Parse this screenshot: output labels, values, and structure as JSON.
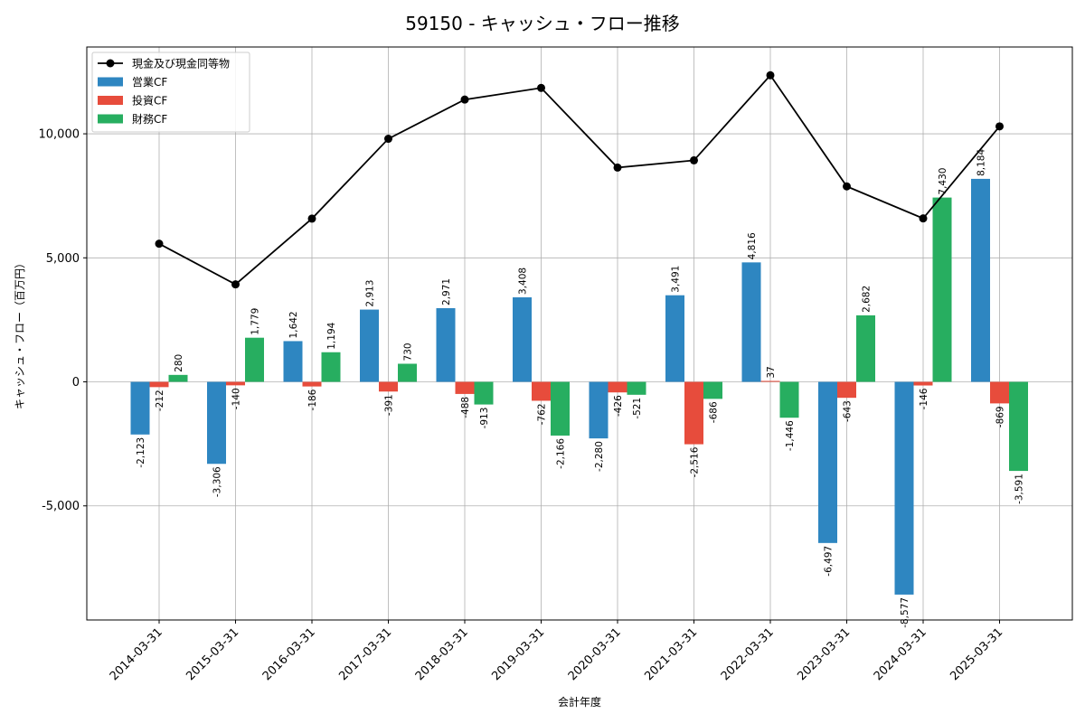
{
  "chart_data": {
    "type": "bar",
    "title": "59150 - キャッシュ・フロー推移",
    "xlabel": "会計年度",
    "ylabel": "キャッシュ・フロー（百万円）",
    "ylim": [
      -9600,
      13500
    ],
    "yticks": [
      -5000,
      0,
      5000,
      10000
    ],
    "ytick_labels": [
      "-5,000",
      "0",
      "5,000",
      "10,000"
    ],
    "grid": true,
    "legend_position": "top-left",
    "categories": [
      "2014-03-31",
      "2015-03-31",
      "2016-03-31",
      "2017-03-31",
      "2018-03-31",
      "2019-03-31",
      "2020-03-31",
      "2021-03-31",
      "2022-03-31",
      "2023-03-31",
      "2024-03-31",
      "2025-03-31"
    ],
    "series": [
      {
        "name": "営業CF",
        "kind": "bar",
        "color": "#2E86C1",
        "values": [
          -2123,
          -3306,
          1642,
          2913,
          2971,
          3408,
          -2280,
          3491,
          4816,
          -6497,
          -8577,
          8184
        ],
        "labels": [
          "-2,123",
          "-3,306",
          "1,642",
          "2,913",
          "2,971",
          "3,408",
          "-2,280",
          "3,491",
          "4,816",
          "-6,497",
          "-8,577",
          "8,184"
        ]
      },
      {
        "name": "投資CF",
        "kind": "bar",
        "color": "#E74C3C",
        "values": [
          -212,
          -140,
          -186,
          -391,
          -488,
          -762,
          -426,
          -2516,
          37,
          -643,
          -146,
          -869
        ],
        "labels": [
          "-212",
          "-140",
          "-186",
          "-391",
          "-488",
          "-762",
          "-426",
          "-2,516",
          "37",
          "-643",
          "-146",
          "-869"
        ]
      },
      {
        "name": "財務CF",
        "kind": "bar",
        "color": "#27AE60",
        "values": [
          280,
          1779,
          1194,
          730,
          -913,
          -2166,
          -521,
          -686,
          -1446,
          2682,
          7430,
          -3591
        ],
        "labels": [
          "280",
          "1,779",
          "1,194",
          "730",
          "-913",
          "-2,166",
          "-521",
          "-686",
          "-1,446",
          "2,682",
          "7,430",
          "-3,591"
        ]
      },
      {
        "name": "現金及び現金同等物",
        "kind": "line",
        "color": "#000000",
        "values": [
          5570,
          3930,
          6580,
          9800,
          11380,
          11850,
          8640,
          8930,
          12360,
          7880,
          6590,
          10300
        ]
      }
    ]
  }
}
